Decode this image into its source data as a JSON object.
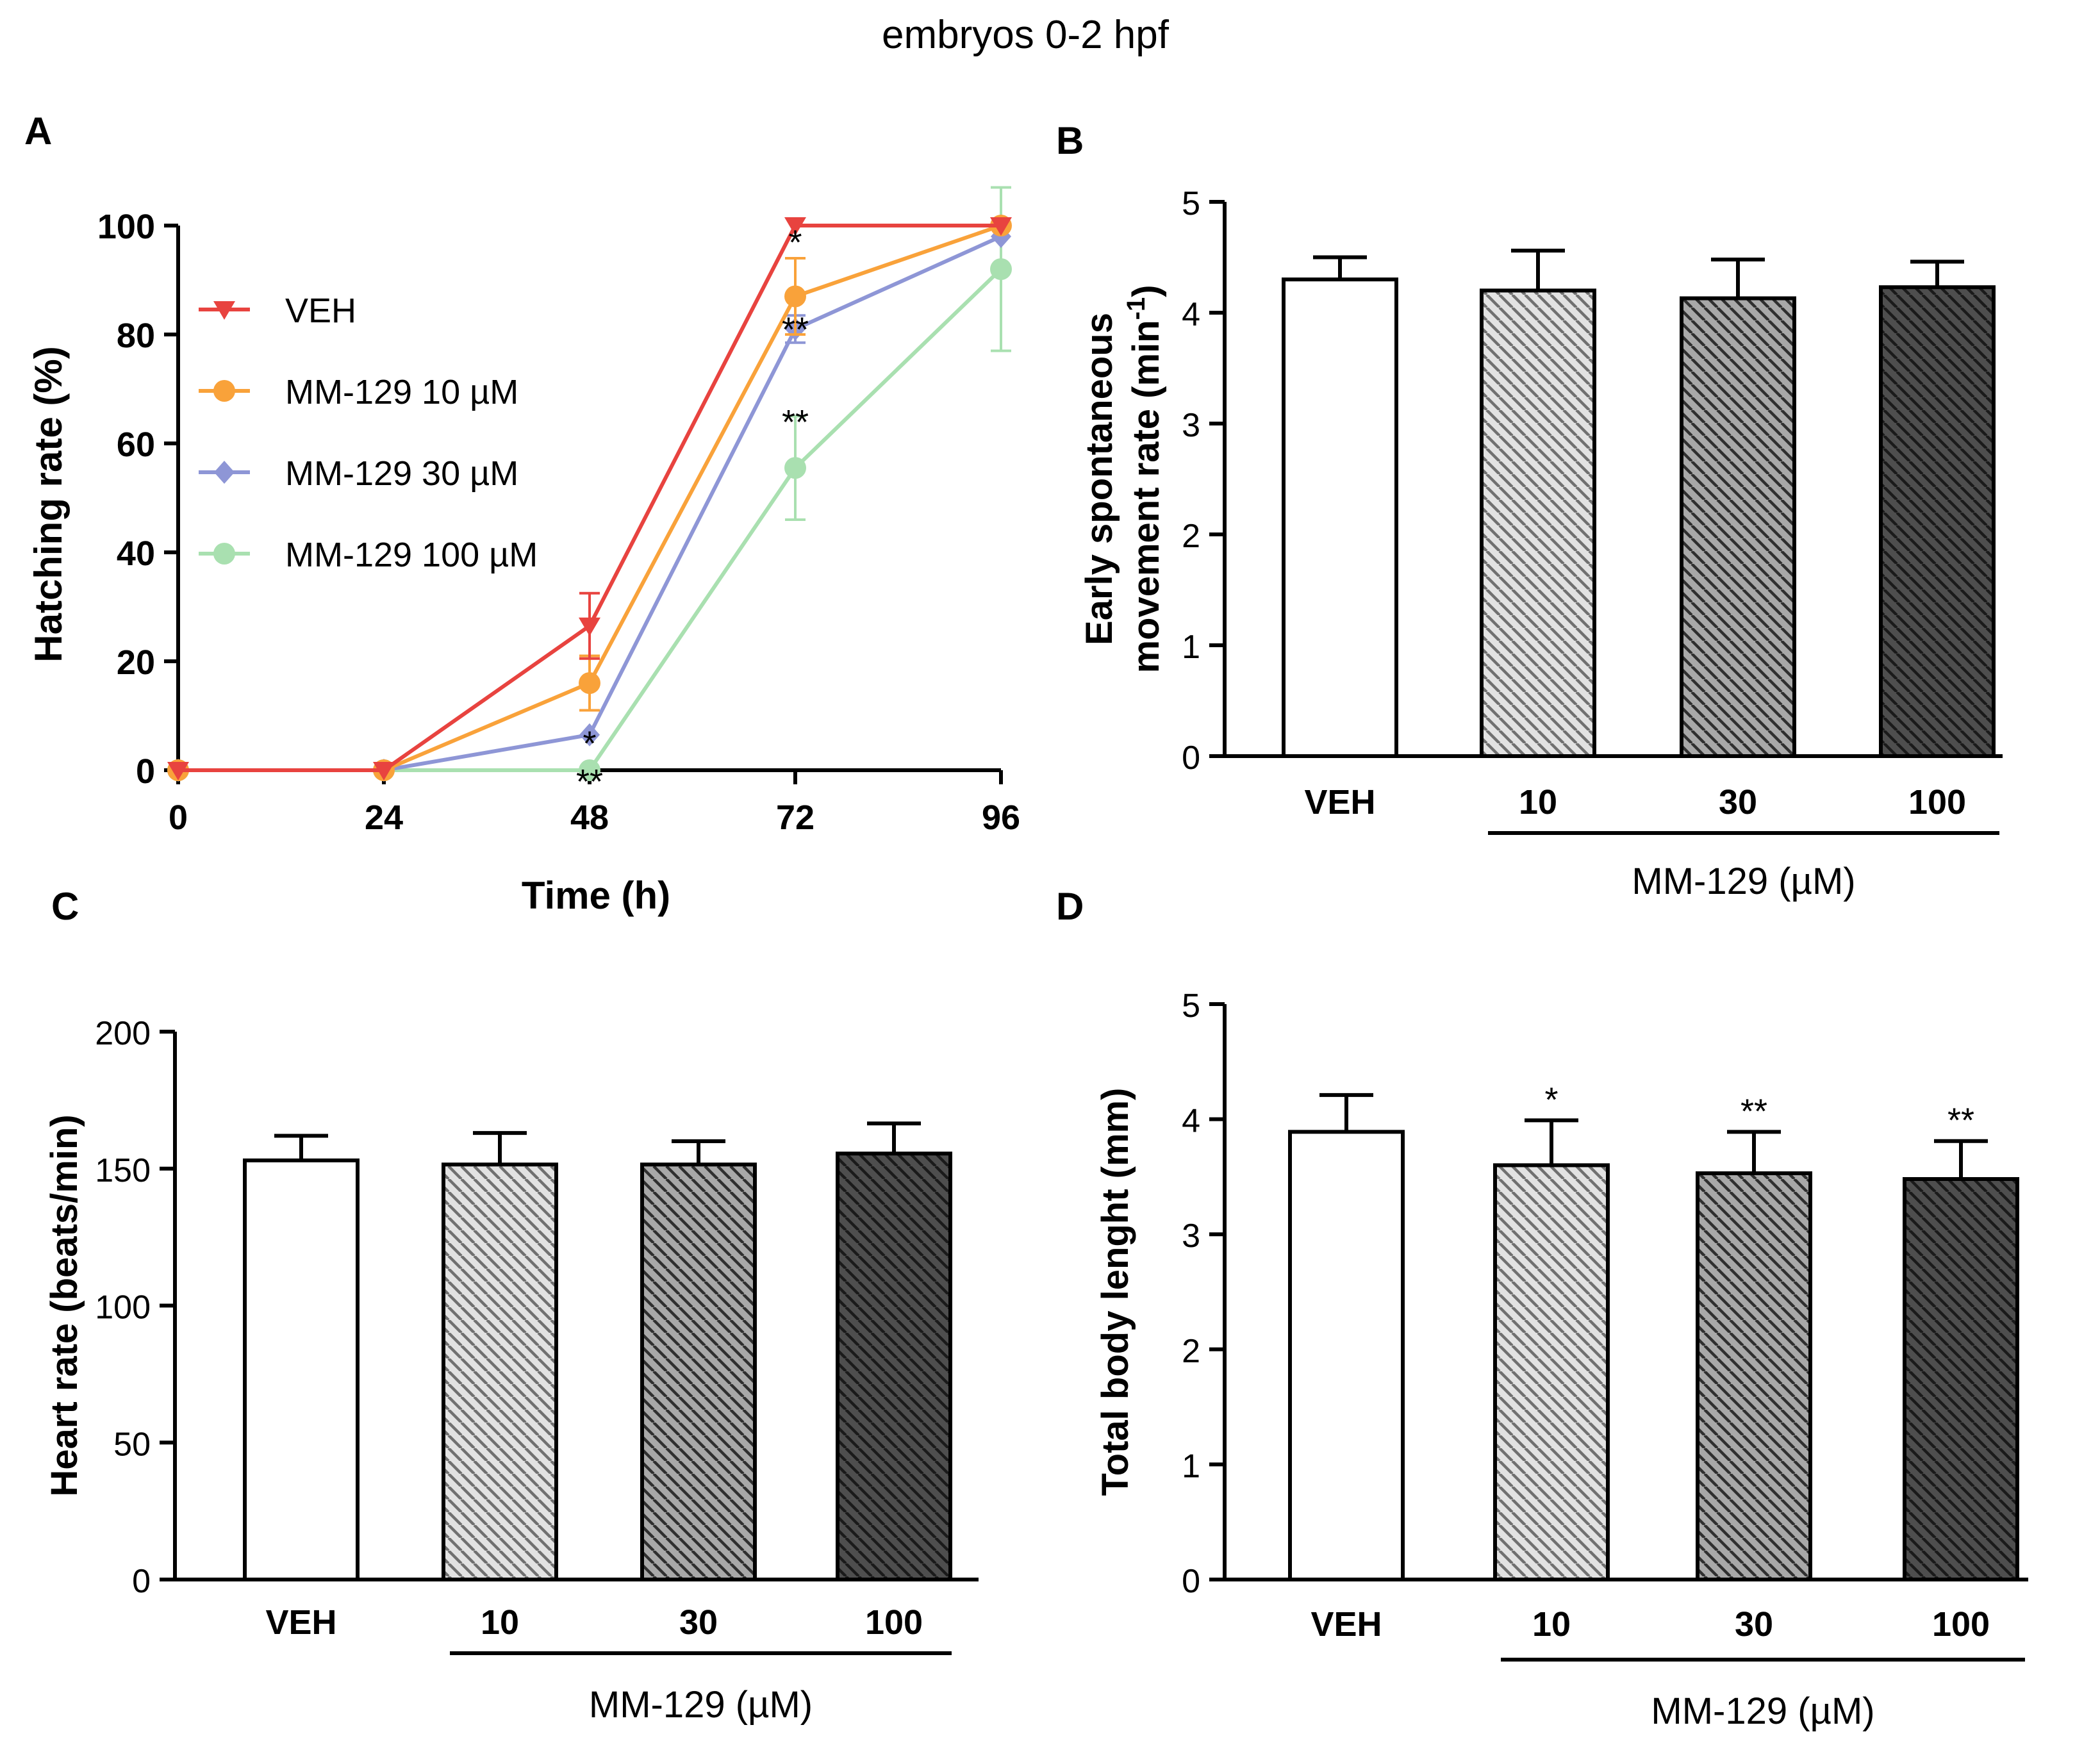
{
  "figure_title": "embryos 0-2 hpf",
  "colors": {
    "axis": "#000000",
    "VEH": "#e8433f",
    "MM-129 10 µM": "#f9a23a",
    "MM-129 30 µM": "#8e96d6",
    "MM-129 100 µM": "#a9e0b0",
    "bar_veh": "#ffffff",
    "bar_10": "#e2e2e2",
    "bar_30": "#a8a8a8",
    "bar_100": "#4e4e4e",
    "hatch_10": "#707070",
    "hatch_30": "#2f2f2f",
    "hatch_100": "#1a1a1a"
  },
  "chart_data": [
    {
      "panel": "A",
      "type": "line",
      "xlabel": "Time (h)",
      "ylabel": "Hatching rate (%)",
      "x": [
        0,
        24,
        48,
        72,
        96
      ],
      "x_ticks": [
        "0",
        "24",
        "48",
        "72",
        "96"
      ],
      "y_ticks": [
        "0",
        "20",
        "40",
        "60",
        "80",
        "100"
      ],
      "xlim": [
        0,
        96
      ],
      "ylim": [
        0,
        100
      ],
      "legend_position": "top-left",
      "series": [
        {
          "name": "VEH",
          "marker": "triangle-down",
          "values": [
            0,
            0,
            26.5,
            100,
            100
          ],
          "errors": [
            0,
            0,
            6,
            0,
            0
          ]
        },
        {
          "name": "MM-129 10 µM",
          "marker": "circle",
          "values": [
            0,
            0,
            16,
            87,
            100
          ],
          "errors": [
            0,
            0,
            5,
            7,
            0
          ]
        },
        {
          "name": "MM-129 30 µM",
          "marker": "diamond",
          "values": [
            0,
            0,
            6.5,
            81,
            98
          ],
          "errors": [
            0,
            0,
            0,
            2.5,
            0
          ]
        },
        {
          "name": "MM-129 100 µM",
          "marker": "circle",
          "values": [
            0,
            0,
            0,
            55.5,
            92
          ],
          "errors": [
            0,
            0,
            0,
            9.5,
            15
          ]
        }
      ],
      "annotations": [
        {
          "text": "*",
          "x": 48,
          "y": 7
        },
        {
          "text": "**",
          "x": 48,
          "y": 0
        },
        {
          "text": "*",
          "x": 72,
          "y": 99
        },
        {
          "text": "**",
          "x": 72,
          "y": 83
        },
        {
          "text": "**",
          "x": 72,
          "y": 66
        }
      ]
    },
    {
      "panel": "B",
      "type": "bar",
      "ylabel_lines": [
        "Early spontaneous",
        "movement rate (min"
      ],
      "ylabel_sup": "-1",
      "ylabel_close": ")",
      "categories": [
        "VEH",
        "10",
        "30",
        "100"
      ],
      "values": [
        4.3,
        4.2,
        4.13,
        4.23
      ],
      "errors": [
        0.2,
        0.36,
        0.35,
        0.23
      ],
      "ylim": [
        0,
        5
      ],
      "y_ticks": [
        "0",
        "1",
        "2",
        "3",
        "4",
        "5"
      ],
      "group_label": "MM-129 (µM)",
      "annotations": [
        "",
        "",
        "",
        ""
      ]
    },
    {
      "panel": "C",
      "type": "bar",
      "ylabel_lines": [
        "Heart rate (beats/min)"
      ],
      "categories": [
        "VEH",
        "10",
        "30",
        "100"
      ],
      "values": [
        153,
        151.5,
        151.5,
        155.5
      ],
      "errors": [
        9,
        11.5,
        8.5,
        11
      ],
      "ylim": [
        0,
        200
      ],
      "y_ticks": [
        "0",
        "50",
        "100",
        "150",
        "200"
      ],
      "group_label": "MM-129 (µM)",
      "annotations": [
        "",
        "",
        "",
        ""
      ]
    },
    {
      "panel": "D",
      "type": "bar",
      "ylabel_lines": [
        "Total body lenght (mm)"
      ],
      "categories": [
        "VEH",
        "10",
        "30",
        "100"
      ],
      "values": [
        3.89,
        3.6,
        3.53,
        3.48
      ],
      "errors": [
        0.32,
        0.39,
        0.36,
        0.33
      ],
      "ylim": [
        0,
        5
      ],
      "y_ticks": [
        "0",
        "1",
        "2",
        "3",
        "4",
        "5"
      ],
      "group_label": "MM-129 (µM)",
      "annotations": [
        "",
        "*",
        "**",
        "**"
      ]
    }
  ]
}
